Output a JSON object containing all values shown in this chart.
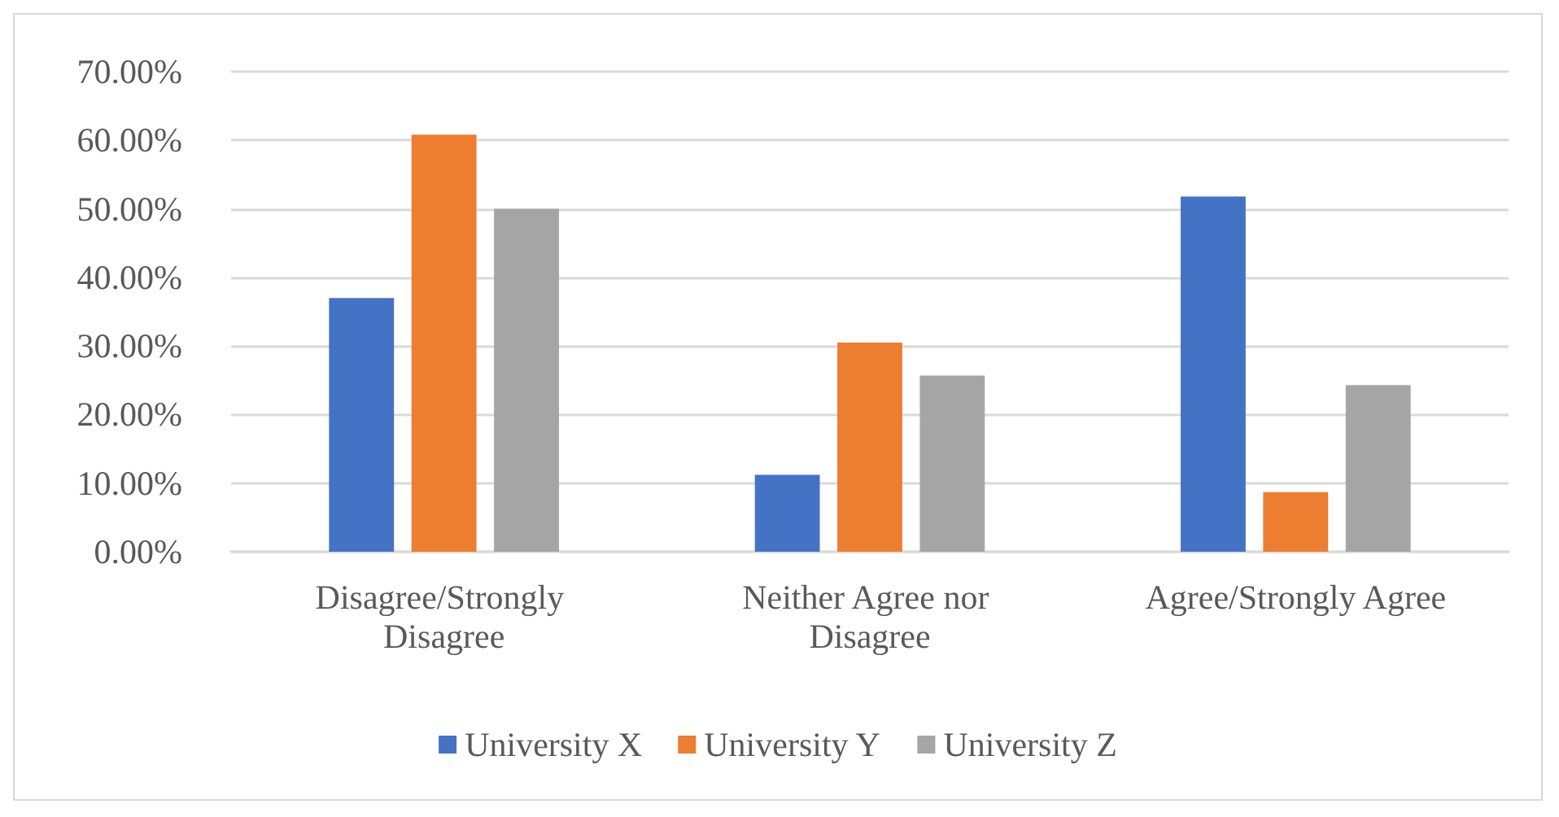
{
  "chart_data": {
    "type": "bar",
    "categories": [
      "Disagree/Strongly Disagree",
      "Neither Agree nor Disagree",
      "Agree/Strongly Agree"
    ],
    "series": [
      {
        "name": "University X",
        "color": "#4472c4",
        "values": [
          37.0,
          11.2,
          51.8
        ]
      },
      {
        "name": "University Y",
        "color": "#ed7d31",
        "values": [
          60.8,
          30.5,
          8.7
        ]
      },
      {
        "name": "University Z",
        "color": "#a5a5a5",
        "values": [
          50.0,
          25.7,
          24.3
        ]
      }
    ],
    "ylim": [
      0,
      70
    ],
    "yticks": [
      {
        "value": 0,
        "label": "0.00%"
      },
      {
        "value": 10,
        "label": "10.00%"
      },
      {
        "value": 20,
        "label": "20.00%"
      },
      {
        "value": 30,
        "label": "30.00%"
      },
      {
        "value": 40,
        "label": "40.00%"
      },
      {
        "value": 50,
        "label": "50.00%"
      },
      {
        "value": 60,
        "label": "60.00%"
      },
      {
        "value": 70,
        "label": "70.00%"
      }
    ],
    "grid": "y",
    "legend": "bottom"
  }
}
